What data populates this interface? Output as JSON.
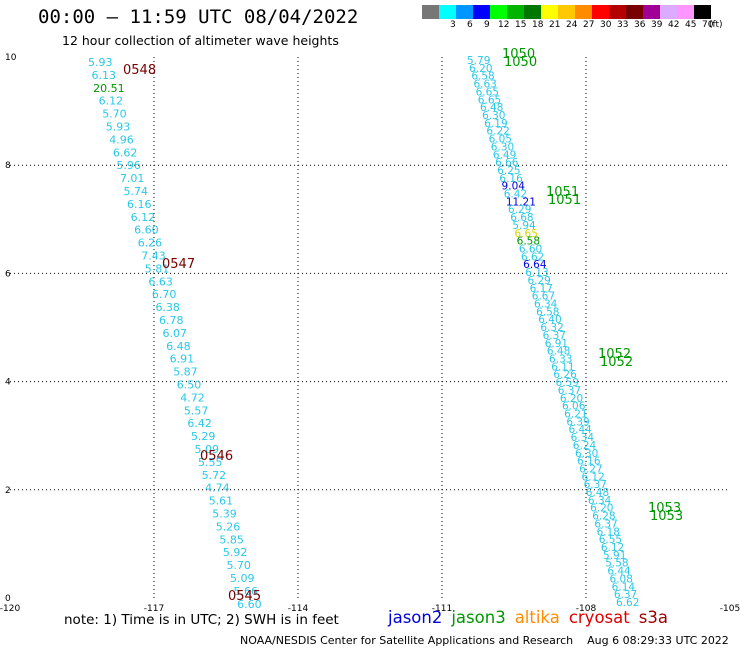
{
  "header": {
    "title": "00:00 – 11:59 UTC 08/04/2022",
    "subtitle": "12 hour collection of altimeter wave heights"
  },
  "legend": {
    "unit": "(ft)",
    "items": [
      {
        "label": "",
        "color": "#777777"
      },
      {
        "label": "3",
        "color": "#00ffff"
      },
      {
        "label": "6",
        "color": "#0096ff"
      },
      {
        "label": "9",
        "color": "#0000ff"
      },
      {
        "label": "12",
        "color": "#00ff00"
      },
      {
        "label": "15",
        "color": "#00b400"
      },
      {
        "label": "18",
        "color": "#007800"
      },
      {
        "label": "21",
        "color": "#ffff00"
      },
      {
        "label": "24",
        "color": "#ffc800"
      },
      {
        "label": "27",
        "color": "#ff8c00"
      },
      {
        "label": "30",
        "color": "#ff0000"
      },
      {
        "label": "33",
        "color": "#b40000"
      },
      {
        "label": "36",
        "color": "#780000"
      },
      {
        "label": "39",
        "color": "#a00096"
      },
      {
        "label": "42",
        "color": "#dcaaff"
      },
      {
        "label": "45",
        "color": "#ff96ff"
      },
      {
        "label": "70",
        "color": "#000000"
      }
    ]
  },
  "footer": {
    "note": "note: 1) Time is in UTC; 2) SWH is in feet",
    "missions": [
      {
        "name": "jason2",
        "color": "#0000dd"
      },
      {
        "name": "jason3",
        "color": "#009600"
      },
      {
        "name": "altika",
        "color": "#ff8c00"
      },
      {
        "name": "cryosat",
        "color": "#dd0000"
      },
      {
        "name": "s3a",
        "color": "#a00000"
      }
    ],
    "credit": "NOAA/NESDIS Center for Satellite Applications and Research",
    "timestamp": "Aug  6 08:29:33 UTC 2022"
  },
  "chart_data": {
    "type": "scatter",
    "title": "00:00 – 11:59 UTC 08/04/2022",
    "subtitle": "12 hour collection of altimeter wave heights",
    "xlim": [
      -120,
      -105
    ],
    "ylim": [
      0,
      10
    ],
    "x_ticks": [
      "-120",
      "-117",
      "-114",
      "-111",
      "-108",
      "-105"
    ],
    "y_ticks": [
      "0",
      "2",
      "4",
      "6",
      "8",
      "10"
    ],
    "grid": true,
    "colors": {
      "cyan": "#29c8e8",
      "green": "#009600",
      "blue": "#0000dd",
      "yellow": "#d8d800",
      "maroon": "#780000"
    },
    "track_left": {
      "points": [
        {
          "lon": -118.7,
          "lat": 9.8,
          "v": "5.93",
          "c": "cyan"
        },
        {
          "lon": -118.6,
          "lat": 9.55,
          "v": "6.13",
          "c": "cyan"
        },
        {
          "lon": -118.7,
          "lat": 9.2,
          "v": "20.51",
          "c": "green"
        },
        {
          "lon": -118.4,
          "lat": 8.9,
          "v": "6.12",
          "c": "cyan"
        },
        {
          "lon": -118.35,
          "lat": 8.6,
          "v": "5.70",
          "c": "cyan"
        },
        {
          "lon": -118.3,
          "lat": 8.3,
          "v": "5.93",
          "c": "cyan"
        },
        {
          "lon": -118.25,
          "lat": 8.0,
          "v": "4.96",
          "c": "cyan"
        },
        {
          "lon": -118.2,
          "lat": 7.7,
          "v": "6.62",
          "c": "cyan"
        },
        {
          "lon": -118.1,
          "lat": 7.4,
          "v": "5.96",
          "c": "cyan"
        },
        {
          "lon": -118.05,
          "lat": 7.1,
          "v": "7.01",
          "c": "cyan"
        },
        {
          "lon": -118.0,
          "lat": 6.8,
          "v": "5.74",
          "c": "cyan"
        },
        {
          "lon": -117.95,
          "lat": 6.5,
          "v": "6.16",
          "c": "cyan"
        },
        {
          "lon": -117.9,
          "lat": 6.2,
          "v": "6.12",
          "c": "cyan"
        },
        {
          "lon": -117.8,
          "lat": 5.9,
          "v": "6.60",
          "c": "cyan"
        },
        {
          "lon": -117.75,
          "lat": 5.6,
          "v": "6.26",
          "c": "cyan"
        },
        {
          "lon": -117.7,
          "lat": 5.3,
          "v": "7.43",
          "c": "cyan"
        },
        {
          "lon": -117.6,
          "lat": 5.0,
          "v": "5.81",
          "c": "cyan"
        },
        {
          "lon": -117.55,
          "lat": 4.7,
          "v": "6.63",
          "c": "cyan"
        },
        {
          "lon": -117.5,
          "lat": 4.4,
          "v": "6.70",
          "c": "cyan"
        },
        {
          "lon": -117.45,
          "lat": 4.1,
          "v": "6.38",
          "c": "cyan"
        },
        {
          "lon": -117.4,
          "lat": 3.8,
          "v": "6.78",
          "c": "cyan"
        },
        {
          "lon": -117.35,
          "lat": 3.5,
          "v": "6.07",
          "c": "cyan"
        },
        {
          "lon": -117.3,
          "lat": 3.2,
          "v": "6.48",
          "c": "cyan"
        },
        {
          "lon": -117.25,
          "lat": 2.9,
          "v": "6.91",
          "c": "cyan"
        },
        {
          "lon": -117.2,
          "lat": 2.6,
          "v": "5.87",
          "c": "cyan"
        },
        {
          "lon": -117.1,
          "lat": 2.3,
          "v": "6.50",
          "c": "cyan"
        },
        {
          "lon": -117.05,
          "lat": 2.0,
          "v": "4.72",
          "c": "cyan"
        },
        {
          "lon": -117.0,
          "lat": 1.7,
          "v": "5.57",
          "c": "cyan"
        },
        {
          "lon": -116.95,
          "lat": 1.4,
          "v": "6.42",
          "c": "cyan"
        },
        {
          "lon": -116.9,
          "lat": 1.1,
          "v": "5.29",
          "c": "cyan"
        },
        {
          "lon": -116.85,
          "lat": 0.8,
          "v": "5.09",
          "c": "cyan"
        },
        {
          "lon": -116.8,
          "lat": 0.5,
          "v": "5.55",
          "c": "cyan"
        },
        {
          "lon": -116.7,
          "lat": 0.2,
          "v": "5.72",
          "c": "cyan"
        }
      ]
    },
    "track_left_low": {
      "points": [
        {
          "lon": -116.65,
          "lat": -0.1,
          "v": "4.74",
          "c": "cyan"
        },
        {
          "lon": -116.6,
          "lat": -0.4,
          "v": "5.61",
          "c": "cyan"
        },
        {
          "lon": -116.55,
          "lat": -0.7,
          "v": "5.39",
          "c": "cyan"
        },
        {
          "lon": -116.5,
          "lat": -1.0,
          "v": "5.26",
          "c": "cyan"
        },
        {
          "lon": -116.45,
          "lat": -1.3,
          "v": "5.85",
          "c": "cyan"
        },
        {
          "lon": -116.4,
          "lat": -1.6,
          "v": "5.92",
          "c": "cyan"
        },
        {
          "lon": -116.35,
          "lat": -1.9,
          "v": "5.70",
          "c": "cyan"
        },
        {
          "lon": -116.3,
          "lat": -2.2,
          "v": "5.09",
          "c": "cyan"
        },
        {
          "lon": -116.25,
          "lat": -2.5,
          "v": "5.66",
          "c": "cyan"
        },
        {
          "lon": -116.2,
          "lat": -2.8,
          "v": "6.60",
          "c": "cyan"
        }
      ]
    },
    "times": [
      {
        "lon": -117.95,
        "lat": 9.55,
        "t": "0548"
      },
      {
        "lon": -117.15,
        "lat": 5.0,
        "t": "0547"
      },
      {
        "lon": -116.35,
        "lat": 0.5,
        "t": "0546"
      },
      {
        "lon": -115.55,
        "lat": -2.8,
        "t": "0545"
      }
    ],
    "track_right": {
      "x_start": -110.4,
      "y_start": 10,
      "x_end": -105.9,
      "y_end": 0,
      "values": [
        "5.79",
        "6.20",
        "6.58",
        "6.63",
        "6.65",
        "6.65",
        "6.48",
        "6.30",
        "6.19",
        "6.22",
        "6.05",
        "6.30",
        "6.49",
        "6.66",
        "6.25",
        "6.16",
        "9.04",
        "6.42",
        "11.21",
        "6.29",
        "6.68",
        "5.94",
        "6.65",
        "6.58",
        "6.60",
        "6.62",
        "6.64",
        "6.13",
        "6.29",
        "6.17",
        "6.67",
        "6.34",
        "6.58",
        "6.40",
        "6.32",
        "6.37",
        "6.91",
        "6.48",
        "6.33",
        "6.11",
        "6.26",
        "6.59",
        "6.37",
        "6.20",
        "6.06",
        "6.21",
        "6.39",
        "6.44",
        "6.34",
        "6.24",
        "6.30",
        "6.16",
        "6.27",
        "6.12",
        "6.37",
        "6.48",
        "6.34",
        "6.20",
        "6.28",
        "6.37",
        "6.18",
        "6.55",
        "6.12",
        "5.91",
        "5.58",
        "6.44",
        "6.08",
        "6.14",
        "6.37",
        "6.62"
      ],
      "highlight": {
        "16": "blue",
        "18": "blue",
        "22": "yellow",
        "23": "green",
        "26": "blue"
      }
    },
    "pass_labels": [
      {
        "lon": -109.5,
        "lat": 9.7,
        "t": "1050"
      },
      {
        "lon": -108.6,
        "lat": 7.4,
        "t": "1051"
      },
      {
        "lon": -107.7,
        "lat": 4.4,
        "t": "1052"
      },
      {
        "lon": -106.9,
        "lat": 1.5,
        "t": "1053"
      }
    ]
  }
}
